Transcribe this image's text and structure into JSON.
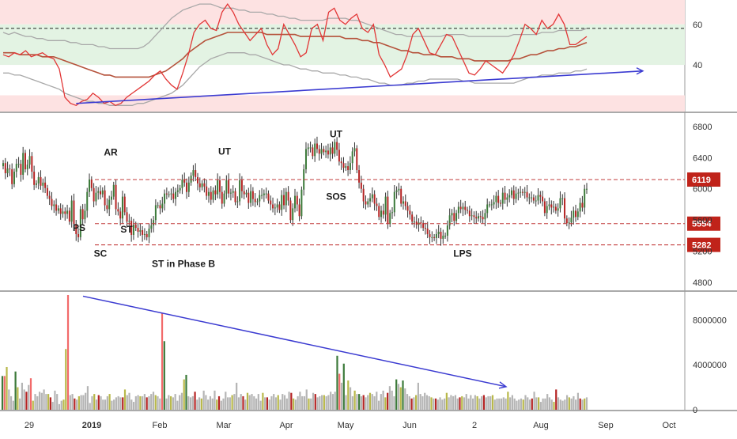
{
  "chart_data": [
    {
      "type": "line",
      "panel": "oscillator",
      "y_ticks": [
        "60",
        "40"
      ],
      "ylim": [
        17,
        72
      ],
      "zones": [
        {
          "from": 60,
          "to": 72,
          "color": "#fde2e2"
        },
        {
          "from": 40,
          "to": 60,
          "color": "#e3f3e3"
        },
        {
          "from": 17,
          "to": 25,
          "color": "#fde2e2"
        }
      ],
      "midline": 58,
      "rsi": [
        45,
        44,
        46,
        45,
        47,
        44,
        45,
        46,
        44,
        43,
        38,
        24,
        21,
        20,
        22,
        23,
        26,
        24,
        21,
        22,
        20,
        21,
        24,
        26,
        28,
        30,
        32,
        35,
        37,
        33,
        30,
        28,
        36,
        45,
        56,
        60,
        62,
        58,
        57,
        66,
        70,
        66,
        60,
        56,
        52,
        55,
        58,
        50,
        45,
        48,
        60,
        55,
        50,
        44,
        46,
        58,
        60,
        52,
        66,
        68,
        62,
        60,
        63,
        65,
        58,
        56,
        60,
        45,
        40,
        34,
        36,
        38,
        45,
        55,
        58,
        52,
        46,
        45,
        50,
        55,
        54,
        48,
        42,
        36,
        35,
        38,
        42,
        40,
        38,
        36,
        40,
        45,
        52,
        60,
        58,
        55,
        62,
        58,
        60,
        65,
        60,
        50,
        50,
        52,
        54
      ],
      "upper_band": [
        56,
        55,
        56,
        55,
        54,
        54,
        53,
        53,
        52,
        52,
        52,
        52,
        51,
        51,
        50,
        50,
        50,
        49,
        49,
        48,
        48,
        48,
        48,
        48,
        48,
        49,
        51,
        54,
        57,
        60,
        63,
        65,
        67,
        68,
        69,
        70,
        70,
        70,
        69,
        68,
        68,
        68,
        67,
        67,
        66,
        66,
        66,
        65,
        65,
        64,
        64,
        63,
        63,
        62,
        62,
        62,
        62,
        62,
        63,
        63,
        63,
        63,
        62,
        62,
        61,
        60,
        59,
        58,
        57,
        56,
        55,
        55,
        54,
        54,
        54,
        54,
        54,
        54,
        54,
        55,
        55,
        55,
        55,
        54,
        54,
        54,
        54,
        54,
        54,
        54,
        54,
        55,
        55,
        55,
        55,
        55,
        56,
        56,
        56,
        57,
        57,
        57,
        57,
        57,
        58
      ],
      "lower_band": [
        36,
        36,
        35,
        35,
        34,
        33,
        32,
        31,
        30,
        29,
        28,
        26,
        25,
        24,
        23,
        22,
        22,
        21,
        21,
        20,
        20,
        20,
        20,
        20,
        21,
        21,
        22,
        23,
        24,
        25,
        26,
        28,
        30,
        33,
        36,
        39,
        41,
        43,
        44,
        45,
        46,
        46,
        46,
        46,
        45,
        45,
        44,
        43,
        42,
        41,
        40,
        40,
        39,
        38,
        38,
        37,
        37,
        36,
        36,
        36,
        35,
        35,
        34,
        34,
        33,
        33,
        32,
        31,
        31,
        30,
        30,
        30,
        31,
        31,
        32,
        32,
        33,
        33,
        33,
        33,
        33,
        33,
        32,
        32,
        31,
        31,
        31,
        31,
        31,
        31,
        31,
        31,
        32,
        33,
        34,
        34,
        35,
        35,
        35,
        36,
        36,
        36,
        37,
        37,
        38
      ],
      "average": [
        46,
        46,
        46,
        45,
        45,
        45,
        45,
        44,
        44,
        44,
        43,
        42,
        41,
        40,
        39,
        38,
        37,
        36,
        35,
        35,
        34,
        34,
        34,
        34,
        34,
        34,
        34,
        35,
        36,
        37,
        39,
        41,
        43,
        46,
        48,
        50,
        52,
        53,
        54,
        55,
        56,
        56,
        56,
        56,
        56,
        56,
        56,
        55,
        55,
        55,
        55,
        55,
        55,
        54,
        54,
        54,
        54,
        54,
        54,
        54,
        54,
        53,
        53,
        53,
        52,
        52,
        51,
        51,
        50,
        49,
        48,
        47,
        47,
        46,
        46,
        45,
        45,
        45,
        44,
        44,
        44,
        43,
        43,
        43,
        42,
        42,
        42,
        42,
        42,
        42,
        42,
        43,
        43,
        44,
        45,
        45,
        46,
        47,
        47,
        48,
        48,
        49,
        49,
        50,
        51
      ],
      "trendline": {
        "from": [
          13,
          21
        ],
        "to": [
          114,
          37
        ]
      }
    },
    {
      "type": "candlestick",
      "panel": "price",
      "y_ticks": [
        "6800",
        "6400",
        "6000",
        "5600",
        "5200",
        "4800"
      ],
      "ylim": [
        4700,
        6950
      ],
      "close": [
        6330,
        6200,
        6260,
        6250,
        6060,
        6220,
        6320,
        6320,
        6180,
        6460,
        6250,
        6310,
        6420,
        6220,
        6050,
        6070,
        6150,
        6040,
        6080,
        6010,
        5910,
        5870,
        5780,
        5800,
        5720,
        5750,
        5680,
        5710,
        5680,
        5720,
        5580,
        5850,
        5550,
        5420,
        5380,
        5740,
        5610,
        5720,
        5960,
        6120,
        6010,
        5840,
        5950,
        5970,
        5930,
        5980,
        5790,
        5740,
        5860,
        5900,
        6050,
        5740,
        5710,
        5620,
        5900,
        5700,
        5580,
        5590,
        5410,
        5540,
        5500,
        5450,
        5470,
        5410,
        5420,
        5380,
        5490,
        5530,
        5600,
        5790,
        5790,
        5750,
        5810,
        5940,
        5930,
        5930,
        5940,
        5870,
        5960,
        5980,
        6010,
        6120,
        6080,
        5960,
        6080,
        6170,
        6240,
        6150,
        6070,
        6020,
        6070,
        6030,
        5910,
        5960,
        5860,
        5980,
        5930,
        6110,
        5960,
        5810,
        5940,
        6110,
        5940,
        5950,
        5970,
        5830,
        5840,
        6110,
        5970,
        5930,
        5950,
        5820,
        5970,
        5870,
        5830,
        5840,
        5920,
        5920,
        5940,
        5940,
        5850,
        5800,
        5750,
        5760,
        5800,
        5730,
        5920,
        5790,
        5960,
        5850,
        5600,
        5750,
        5910,
        5800,
        5650,
        5990,
        6250,
        6510,
        6530,
        6530,
        6420,
        6580,
        6510,
        6450,
        6510,
        6470,
        6490,
        6440,
        6530,
        6450,
        6600,
        6500,
        6350,
        6330,
        6270,
        6290,
        6240,
        6330,
        6480,
        6520,
        6240,
        6080,
        6000,
        5840,
        5800,
        5840,
        5880,
        5930,
        5810,
        5780,
        5640,
        5720,
        5670,
        5900,
        5550,
        5690,
        5700,
        5960,
        5980,
        6000,
        5810,
        5840,
        5780,
        5720,
        5670,
        5580,
        5580,
        5540,
        5570,
        5560,
        5500,
        5490,
        5420,
        5380,
        5380,
        5370,
        5420,
        5450,
        5360,
        5400,
        5400,
        5530,
        5660,
        5690,
        5590,
        5690,
        5770,
        5740,
        5770,
        5730,
        5720,
        5650,
        5660,
        5640,
        5620,
        5650,
        5640,
        5610,
        5690,
        5800,
        5800,
        5800,
        5830,
        5910,
        5820,
        5810,
        5950,
        5860,
        5890,
        5920,
        5980,
        5870,
        5940,
        5950,
        5960,
        5950,
        5960,
        5890,
        5890,
        5890,
        5850,
        5850,
        5920,
        5900,
        5840,
        5690,
        5780,
        5800,
        5760,
        5770,
        5720,
        5750,
        5880,
        5880,
        5620,
        5560,
        5570,
        5630,
        5720,
        5640,
        5710,
        5820,
        5760,
        6000,
        6000
      ],
      "horizontal_levels": [
        {
          "value": 6119,
          "label": "6119"
        },
        {
          "value": 5554,
          "label": "5554"
        },
        {
          "value": 5282,
          "label": "5282"
        }
      ],
      "annotations": [
        {
          "text": "AR",
          "x": 140,
          "value": 6430
        },
        {
          "text": "UT",
          "x": 284,
          "value": 6440
        },
        {
          "text": "UT",
          "x": 425,
          "value": 6660
        },
        {
          "text": "SOS",
          "x": 425,
          "value": 5860
        },
        {
          "text": "PS",
          "x": 100,
          "value": 5460
        },
        {
          "text": "ST",
          "x": 160,
          "value": 5440
        },
        {
          "text": "SC",
          "x": 127,
          "value": 5130
        },
        {
          "text": "ST in Phase B",
          "x": 232,
          "value": 5000
        },
        {
          "text": "LPS",
          "x": 585,
          "value": 5130
        }
      ]
    },
    {
      "type": "bar",
      "panel": "volume",
      "y_ticks": [
        "8000000",
        "4000000",
        "0"
      ],
      "ylim": [
        0,
        10200000
      ],
      "values": [
        3000000,
        3000000,
        3800000,
        1800000,
        1200000,
        800000,
        3400000,
        2000000,
        1000000,
        2400000,
        1800000,
        1600000,
        2200000,
        2800000,
        800000,
        1400000,
        1200000,
        1600000,
        1500000,
        1800000,
        1400000,
        1400000,
        1100000,
        700000,
        1700000,
        1400000,
        500000,
        800000,
        900000,
        5400000,
        10200000,
        1300000,
        1400000,
        1000000,
        900000,
        1200000,
        1300000,
        1300000,
        1500000,
        2100000,
        600000,
        1200000,
        1400000,
        900000,
        1300000,
        1200000,
        900000,
        900000,
        1200000,
        1400000,
        800000,
        900000,
        1100000,
        1200000,
        1100000,
        1100000,
        1800000,
        1300000,
        1500000,
        900000,
        700000,
        1200000,
        1300000,
        1200000,
        1200000,
        1400000,
        1100000,
        1200000,
        1400000,
        1600000,
        1300000,
        1200000,
        1000000,
        8600000,
        6100000,
        1000000,
        1300000,
        1200000,
        1100000,
        1400000,
        800000,
        1300000,
        1500000,
        2700000,
        3100000,
        1200000,
        1100000,
        1200000,
        1600000,
        900000,
        1100000,
        1000000,
        1700000,
        1300000,
        900000,
        1200000,
        1000000,
        1700000,
        900000,
        1200000,
        800000,
        1000000,
        1600000,
        1100000,
        1100000,
        1300000,
        1400000,
        2400000,
        1100000,
        1400000,
        1200000,
        900000,
        1500000,
        1300000,
        1400000,
        1200000,
        1000000,
        1400000,
        800000,
        1500000,
        1100000,
        1100000,
        900000,
        1200000,
        1400000,
        1100000,
        1300000,
        900000,
        1400000,
        1300000,
        1000000,
        1600000,
        1500000,
        1000000,
        900000,
        1200000,
        1600000,
        1200000,
        1200000,
        1800000,
        1000000,
        1000000,
        1500000,
        1400000,
        1100000,
        1200000,
        1300000,
        1300000,
        1200000,
        1300000,
        1600000,
        1400000,
        1600000,
        4800000,
        3200000,
        2400000,
        4100000,
        1300000,
        2600000,
        2000000,
        1200000,
        1700000,
        1400000,
        1400000,
        1200000,
        1300000,
        1100000,
        1300000,
        1500000,
        1400000,
        1200000,
        1600000,
        800000,
        1400000,
        1700000,
        1100000,
        1500000,
        2100000,
        1700000,
        1200000,
        2700000,
        2300000,
        2000000,
        2600000,
        1900000,
        1400000,
        1200000,
        1000000,
        1100000,
        1300000,
        2400000,
        1400000,
        1200000,
        1500000,
        1300000,
        1200000,
        1100000,
        1000000,
        1000000,
        900000,
        1100000,
        900000,
        1000000,
        1500000,
        1100000,
        1300000,
        1200000,
        1300000,
        1000000,
        1100000,
        1200000,
        1100000,
        1400000,
        1000000,
        1300000,
        1000000,
        1300000,
        1200000,
        1000000,
        1200000,
        1300000,
        1100000,
        1200000,
        1200000,
        1300000,
        900000,
        1000000,
        1000000,
        1000000,
        1100000,
        1000000,
        1600000,
        1100000,
        1300000,
        1000000,
        800000,
        900000,
        1000000,
        900000,
        1300000,
        1100000,
        900000,
        1000000,
        1600000,
        1100000,
        1100000,
        700000,
        1000000,
        1000000,
        1400000,
        1100000,
        900000,
        700000,
        1800000,
        1100000,
        900000,
        800000,
        900000,
        1300000,
        1100000,
        1000000,
        1200000,
        900000,
        1500000,
        1000000,
        900000,
        1000000,
        1100000
      ],
      "volume_trendline": {
        "from": [
          105,
          10100000
        ],
        "to": [
          640,
          2050000
        ]
      }
    }
  ],
  "x_tick_labels": [
    "29",
    "2019",
    "Feb",
    "Mar",
    "Apr",
    "May",
    "Jun",
    "2",
    "Aug",
    "Sep",
    "Oct"
  ],
  "colors": {
    "up": "#3c7a3a",
    "down": "#b52424",
    "volume_neutral": "#b5b5b5",
    "volume_olive": "#b8b84a",
    "volume_strong_down": "#f26a6a",
    "rsi_line": "#e23636",
    "rsi_average": "#b5523b",
    "bands": "#a8a8a8",
    "trendline": "#3b3bd1",
    "level_line": "#c23b3b",
    "label_badge": "#c0231a"
  }
}
